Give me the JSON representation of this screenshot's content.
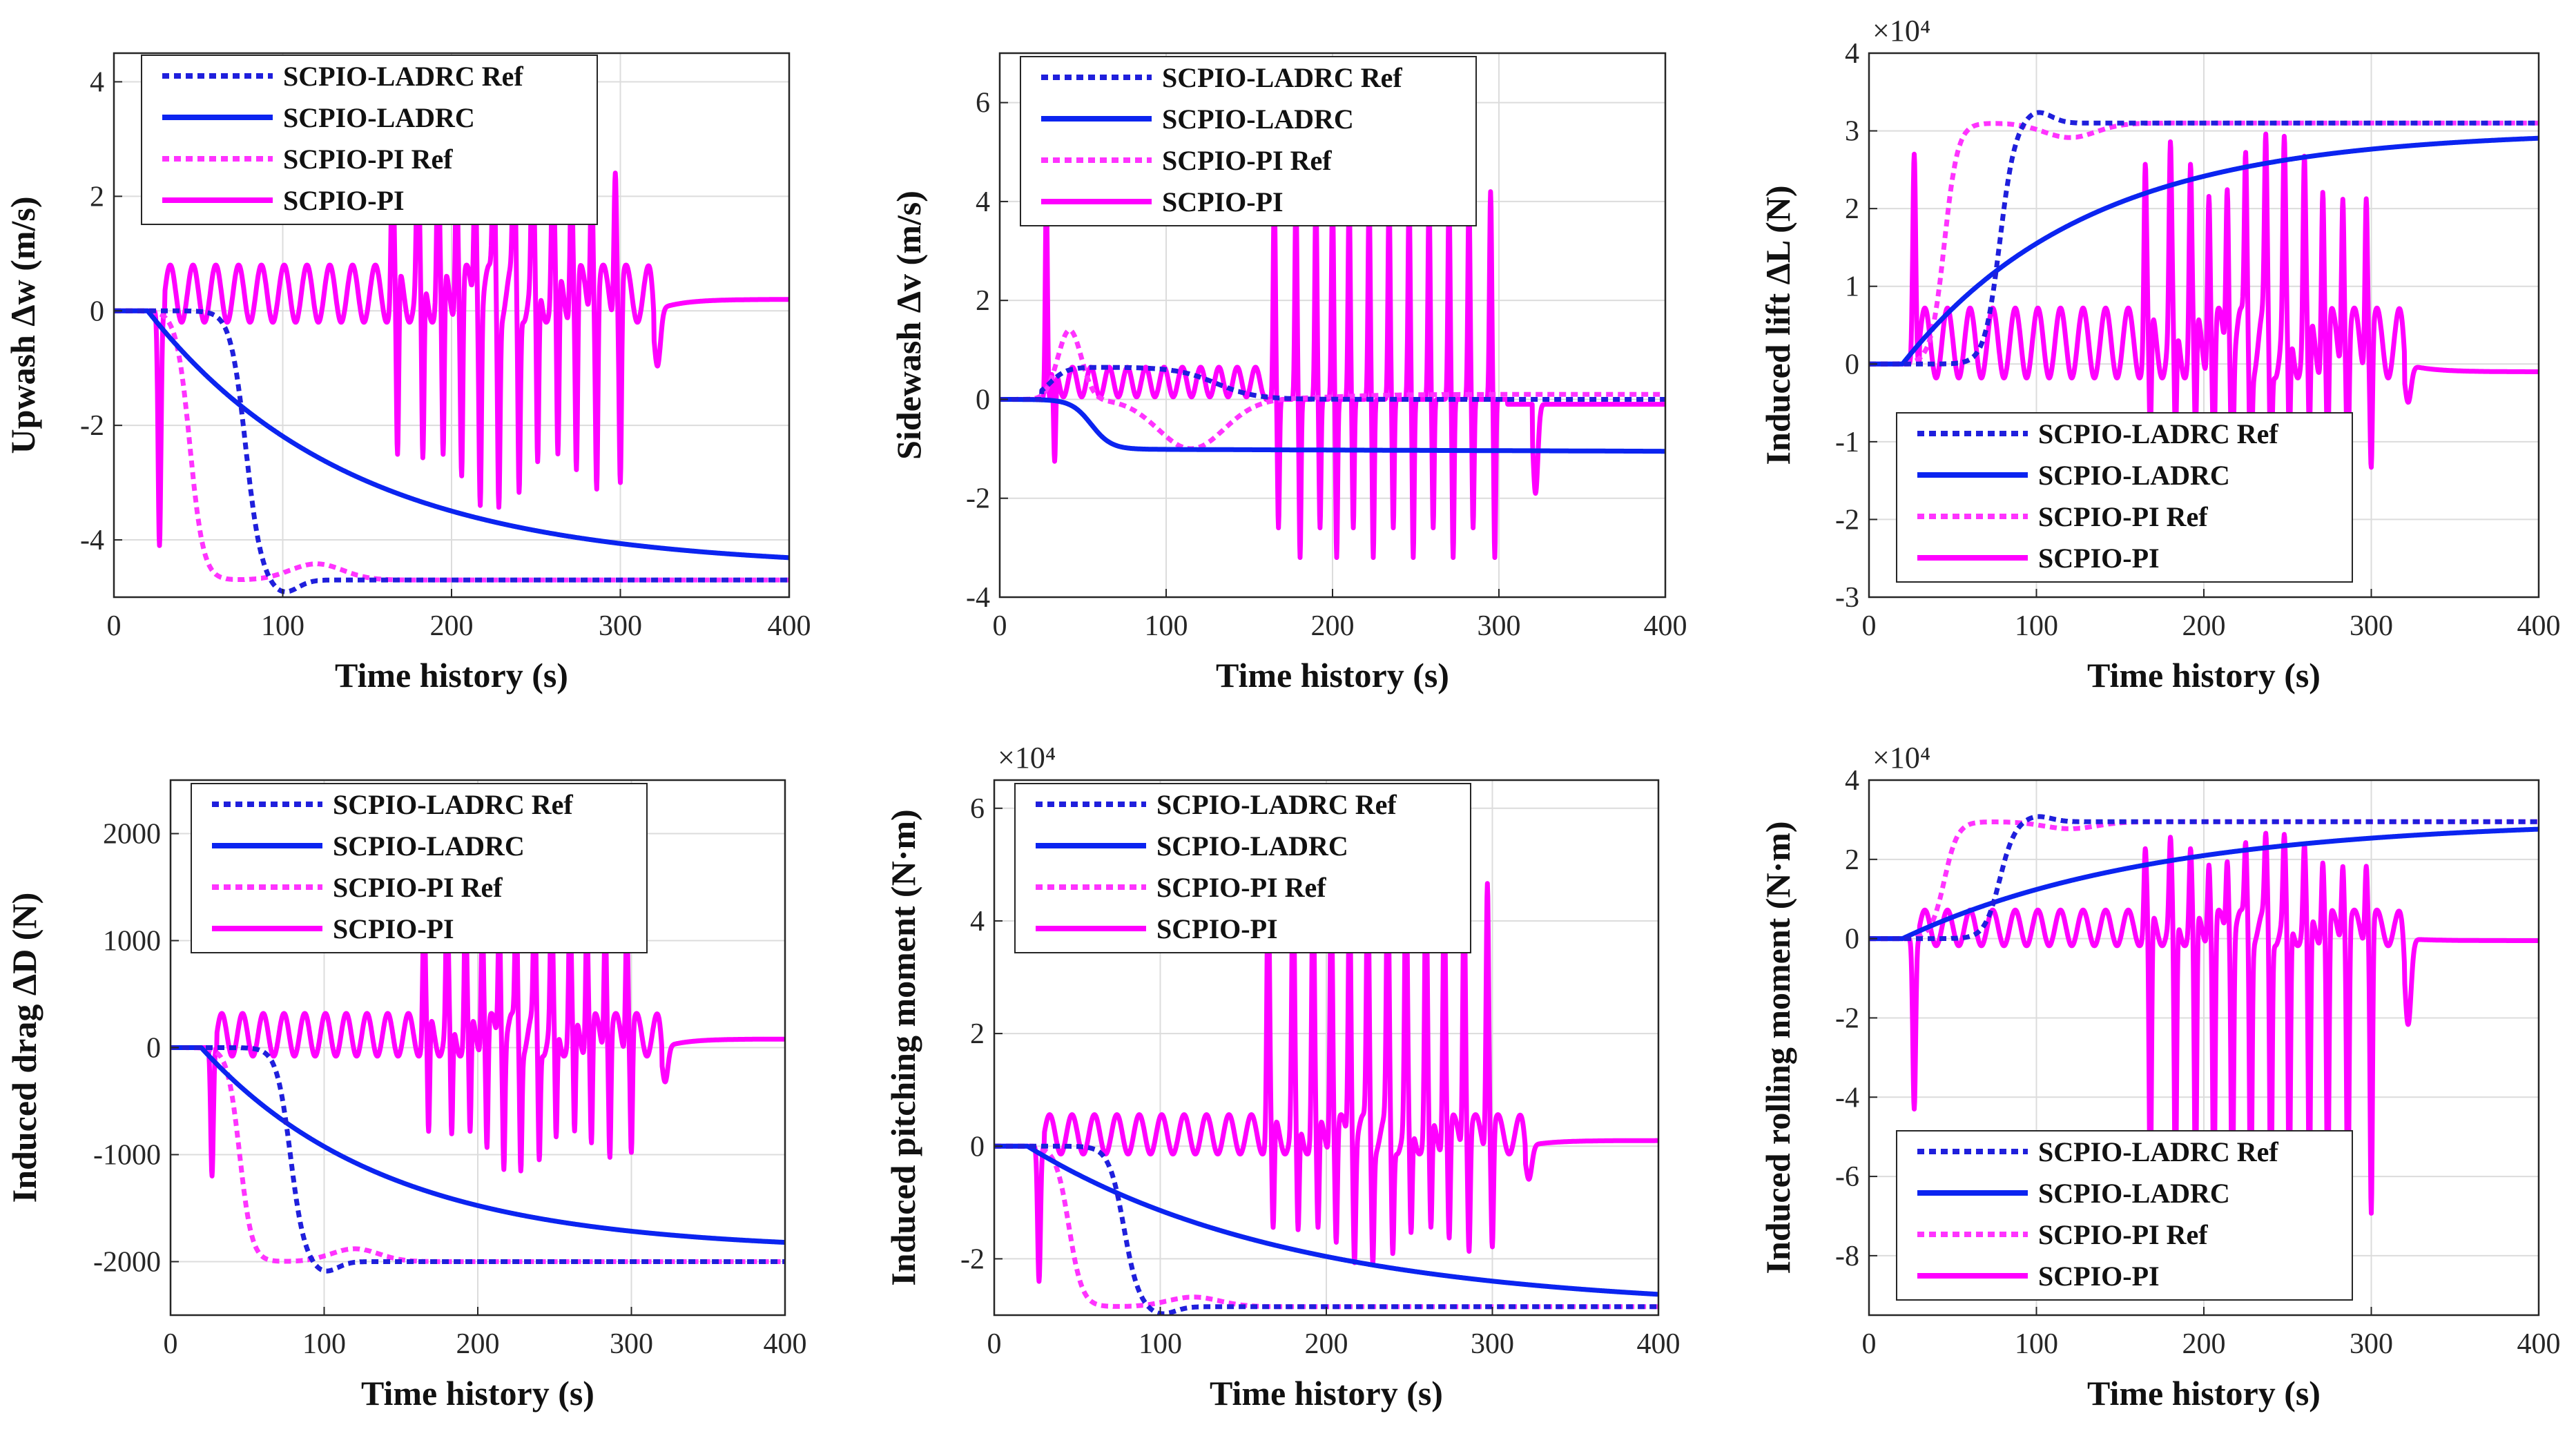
{
  "chart_data": [
    {
      "type": "line",
      "id": "upwash",
      "ylabel": "Upwash Δw (m/s)",
      "xlabel": "Time history (s)",
      "xlim": [
        0,
        400
      ],
      "ylim": [
        -5,
        4.5
      ],
      "xticks": [
        0,
        100,
        200,
        300,
        400
      ],
      "yticks": [
        -4,
        -2,
        0,
        2,
        4
      ],
      "multiplier": "",
      "legend_position": "top-left",
      "grid": true,
      "model": {
        "scale": 1,
        "ref_final": -4.7,
        "ladrc_final": -4.5,
        "ladrc_tau": 120,
        "pi_osc": 0.5,
        "pi_spike_up": 2.6,
        "pi_spike_down": -3.3,
        "pi_final": 0.2,
        "pi_first_dip": -4.1
      },
      "series": [
        {
          "name": "SCPIO-LADRC Ref",
          "color": "#1f1fdc",
          "dash": true
        },
        {
          "name": "SCPIO-LADRC",
          "color": "#0b24f0",
          "dash": false
        },
        {
          "name": "SCPIO-PI Ref",
          "color": "#ff33ff",
          "dash": true
        },
        {
          "name": "SCPIO-PI",
          "color": "#ff00ff",
          "dash": false
        }
      ]
    },
    {
      "type": "line",
      "id": "sidewash",
      "ylabel": "Sidewash Δv (m/s)",
      "xlabel": "Time history (s)",
      "xlim": [
        0,
        400
      ],
      "ylim": [
        -4,
        7
      ],
      "xticks": [
        0,
        100,
        200,
        300,
        400
      ],
      "yticks": [
        -4,
        -2,
        0,
        2,
        4,
        6
      ],
      "multiplier": "",
      "legend_position": "top-left",
      "grid": true,
      "series": [
        {
          "name": "SCPIO-LADRC Ref",
          "color": "#1f1fdc",
          "dash": true
        },
        {
          "name": "SCPIO-LADRC",
          "color": "#0b24f0",
          "dash": false
        },
        {
          "name": "SCPIO-PI Ref",
          "color": "#ff33ff",
          "dash": true
        },
        {
          "name": "SCPIO-PI",
          "color": "#ff00ff",
          "dash": false
        }
      ]
    },
    {
      "type": "line",
      "id": "lift",
      "ylabel": "Induced lift ΔL (N)",
      "xlabel": "Time history (s)",
      "xlim": [
        0,
        400
      ],
      "ylim": [
        -3,
        4
      ],
      "xticks": [
        0,
        100,
        200,
        300,
        400
      ],
      "yticks": [
        -3,
        -2,
        -1,
        0,
        1,
        2,
        3,
        4
      ],
      "multiplier": "×10⁴",
      "legend_position": "bottom-left",
      "grid": true,
      "model": {
        "scale": 1,
        "ref_final": 3.1,
        "ladrc_final": 3.0,
        "ladrc_tau": 110,
        "pi_osc": 0.45,
        "pi_spike_up": 2.3,
        "pi_spike_down": -1.6,
        "pi_final": -0.1,
        "pi_first_dip": 2.7
      },
      "series": [
        {
          "name": "SCPIO-LADRC Ref",
          "color": "#1f1fdc",
          "dash": true
        },
        {
          "name": "SCPIO-LADRC",
          "color": "#0b24f0",
          "dash": false
        },
        {
          "name": "SCPIO-PI Ref",
          "color": "#ff33ff",
          "dash": true
        },
        {
          "name": "SCPIO-PI",
          "color": "#ff00ff",
          "dash": false
        }
      ]
    },
    {
      "type": "line",
      "id": "drag",
      "ylabel": "Induced drag ΔD (N)",
      "xlabel": "Time history (s)",
      "xlim": [
        0,
        400
      ],
      "ylim": [
        -2500,
        2500
      ],
      "xticks": [
        0,
        100,
        200,
        300,
        400
      ],
      "yticks": [
        -2000,
        -1000,
        0,
        1000,
        2000
      ],
      "multiplier": "",
      "legend_position": "top-left",
      "grid": true,
      "model": {
        "scale": 1,
        "ref_final": -2000,
        "ladrc_final": -1900,
        "ladrc_tau": 120,
        "pi_osc": 200,
        "pi_spike_up": 1300,
        "pi_spike_down": -1100,
        "pi_final": 80,
        "pi_first_dip": -1200
      },
      "series": [
        {
          "name": "SCPIO-LADRC Ref",
          "color": "#1f1fdc",
          "dash": true
        },
        {
          "name": "SCPIO-LADRC",
          "color": "#0b24f0",
          "dash": false
        },
        {
          "name": "SCPIO-PI Ref",
          "color": "#ff33ff",
          "dash": true
        },
        {
          "name": "SCPIO-PI",
          "color": "#ff00ff",
          "dash": false
        }
      ]
    },
    {
      "type": "line",
      "id": "pitch",
      "ylabel": "Induced pitching moment  (N·m)",
      "xlabel": "Time history (s)",
      "xlim": [
        0,
        400
      ],
      "ylim": [
        -3,
        6.5
      ],
      "xticks": [
        0,
        100,
        200,
        300,
        400
      ],
      "yticks": [
        -2,
        0,
        2,
        4,
        6
      ],
      "multiplier": "×10⁴",
      "legend_position": "top-left",
      "grid": true,
      "model": {
        "scale": 1,
        "ref_final": -2.85,
        "ladrc_final": -2.9,
        "ladrc_tau": 160,
        "pi_osc": 0.35,
        "pi_spike_up": 4.8,
        "pi_spike_down": -2.0,
        "pi_final": 0.1,
        "pi_first_dip": -2.4
      },
      "series": [
        {
          "name": "SCPIO-LADRC Ref",
          "color": "#1f1fdc",
          "dash": true
        },
        {
          "name": "SCPIO-LADRC",
          "color": "#0b24f0",
          "dash": false
        },
        {
          "name": "SCPIO-PI Ref",
          "color": "#ff33ff",
          "dash": true
        },
        {
          "name": "SCPIO-PI",
          "color": "#ff00ff",
          "dash": false
        }
      ]
    },
    {
      "type": "line",
      "id": "roll",
      "ylabel": "Induced rolling moment  (N·m)",
      "xlabel": "Time history (s)",
      "xlim": [
        0,
        400
      ],
      "ylim": [
        -9.5,
        4
      ],
      "xticks": [
        0,
        100,
        200,
        300,
        400
      ],
      "yticks": [
        -8,
        -6,
        -4,
        -2,
        0,
        2,
        4
      ],
      "multiplier": "×10⁴",
      "legend_position": "bottom-left",
      "grid": true,
      "model": {
        "scale": 1,
        "ref_final": 2.95,
        "ladrc_final": 3.0,
        "ladrc_tau": 150,
        "pi_osc": 0.45,
        "pi_spike_up": 2.0,
        "pi_spike_down": -7.2,
        "pi_final": -0.05,
        "pi_first_dip": -4.3
      },
      "series": [
        {
          "name": "SCPIO-LADRC Ref",
          "color": "#1f1fdc",
          "dash": true
        },
        {
          "name": "SCPIO-LADRC",
          "color": "#0b24f0",
          "dash": false
        },
        {
          "name": "SCPIO-PI Ref",
          "color": "#ff33ff",
          "dash": true
        },
        {
          "name": "SCPIO-PI",
          "color": "#ff00ff",
          "dash": false
        }
      ]
    }
  ]
}
